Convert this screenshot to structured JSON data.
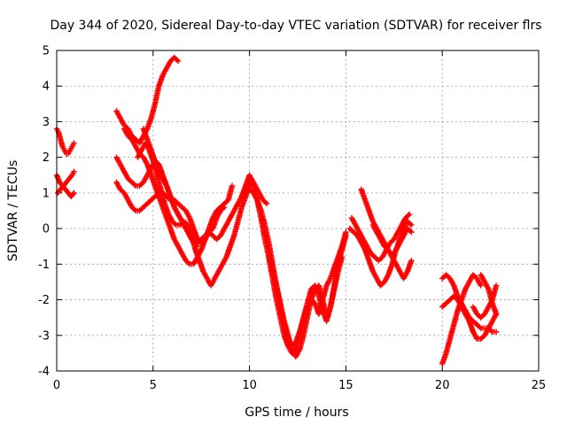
{
  "chart_data": {
    "type": "scatter",
    "title": "Day 344 of 2020, Sidereal Day-to-day VTEC variation (SDTVAR) for receiver flrs",
    "xlabel": "GPS time / hours",
    "ylabel": "SDTVAR / TECUs",
    "xlim": [
      0,
      25
    ],
    "ylim": [
      -4,
      5
    ],
    "xticks": [
      "0",
      "5",
      "10",
      "15",
      "20",
      "25"
    ],
    "yticks": [
      "-4",
      "-3",
      "-2",
      "-1",
      "0",
      "1",
      "2",
      "3",
      "4",
      "5"
    ],
    "grid": true,
    "marker": "+",
    "color": "#ff0000",
    "series": [
      {
        "x": [
          0.0,
          0.1,
          0.2,
          0.3,
          0.4,
          0.5,
          0.6,
          0.7,
          0.8,
          0.9
        ],
        "y": [
          2.8,
          2.7,
          2.5,
          2.3,
          2.2,
          2.1,
          2.1,
          2.2,
          2.3,
          2.4
        ]
      },
      {
        "x": [
          0.0,
          0.15,
          0.3,
          0.45,
          0.6,
          0.75,
          0.9
        ],
        "y": [
          1.5,
          1.3,
          1.2,
          1.1,
          1.0,
          0.9,
          1.0
        ]
      },
      {
        "x": [
          0.05,
          0.2,
          0.35,
          0.5,
          0.65,
          0.8,
          0.9
        ],
        "y": [
          1.0,
          1.1,
          1.2,
          1.3,
          1.4,
          1.5,
          1.6
        ]
      },
      {
        "x": [
          3.1,
          3.3,
          3.5,
          3.7,
          3.9,
          4.1,
          4.3,
          4.5,
          4.7,
          4.9,
          5.1,
          5.3,
          5.5,
          5.7,
          5.9,
          6.1,
          6.3
        ],
        "y": [
          3.3,
          3.1,
          2.9,
          2.8,
          2.6,
          2.5,
          2.4,
          2.6,
          2.8,
          3.1,
          3.5,
          4.0,
          4.3,
          4.5,
          4.7,
          4.8,
          4.7
        ]
      },
      {
        "x": [
          3.1,
          3.3,
          3.5,
          3.7,
          3.9,
          4.1,
          4.3,
          4.5,
          4.7,
          4.9,
          5.1,
          5.3,
          5.5,
          5.7,
          5.9,
          6.1,
          6.3,
          6.5,
          6.7,
          6.9,
          7.1,
          7.3,
          7.5,
          7.7,
          7.9,
          8.1,
          8.3,
          8.5,
          8.7
        ],
        "y": [
          1.3,
          1.1,
          1.0,
          0.8,
          0.6,
          0.5,
          0.5,
          0.6,
          0.7,
          0.8,
          0.9,
          1.0,
          1.0,
          0.9,
          0.8,
          0.8,
          0.7,
          0.6,
          0.5,
          0.3,
          0.0,
          -0.3,
          -0.4,
          -0.3,
          -0.1,
          0.0,
          0.3,
          0.5,
          0.6
        ]
      },
      {
        "x": [
          3.1,
          3.3,
          3.5,
          3.7,
          3.9,
          4.1,
          4.3,
          4.5,
          4.7,
          4.9,
          5.1,
          5.3,
          5.5,
          5.7,
          5.9,
          6.1,
          6.3,
          6.5,
          6.7,
          6.9,
          7.1,
          7.3
        ],
        "y": [
          2.0,
          1.8,
          1.6,
          1.4,
          1.3,
          1.2,
          1.2,
          1.3,
          1.5,
          1.7,
          1.9,
          1.8,
          1.5,
          1.2,
          0.9,
          0.6,
          0.4,
          0.2,
          0.0,
          -0.2,
          -0.4,
          -0.5
        ]
      },
      {
        "x": [
          3.5,
          3.7,
          3.9,
          4.1,
          4.3,
          4.5,
          4.7,
          4.9,
          5.1,
          5.3,
          5.5,
          5.7,
          5.9,
          6.1,
          6.3,
          6.5,
          6.7,
          6.9,
          7.1,
          7.3,
          7.5,
          7.7,
          7.9,
          8.1,
          8.3,
          8.5,
          8.7,
          8.9,
          9.1
        ],
        "y": [
          2.8,
          2.6,
          2.5,
          2.3,
          2.1,
          2.0,
          1.8,
          1.5,
          1.2,
          0.9,
          0.6,
          0.3,
          0.0,
          -0.3,
          -0.5,
          -0.7,
          -0.9,
          -1.0,
          -1.0,
          -0.8,
          -0.6,
          -0.3,
          0.0,
          0.3,
          0.5,
          0.6,
          0.7,
          0.8,
          1.2
        ]
      },
      {
        "x": [
          4.2,
          4.4,
          4.6,
          4.8,
          5.0,
          5.2,
          5.4,
          5.6,
          5.8,
          6.0,
          6.2,
          6.4,
          6.6,
          6.8,
          7.0,
          7.2,
          7.4,
          7.6,
          7.8,
          8.0,
          8.2,
          8.4,
          8.6,
          8.8,
          9.0,
          9.2,
          9.4,
          9.6,
          9.8,
          10.0
        ],
        "y": [
          2.0,
          2.2,
          2.4,
          2.2,
          1.9,
          1.5,
          1.1,
          0.7,
          0.4,
          0.2,
          0.1,
          0.1,
          0.2,
          0.1,
          -0.2,
          -0.6,
          -0.9,
          -1.2,
          -1.4,
          -1.6,
          -1.4,
          -1.2,
          -1.0,
          -0.8,
          -0.5,
          -0.2,
          0.2,
          0.6,
          0.9,
          1.2
        ]
      },
      {
        "x": [
          4.5,
          4.7,
          4.9,
          5.1,
          5.3,
          5.5,
          5.7,
          5.9,
          6.1,
          6.3,
          6.5,
          6.7,
          6.9,
          7.1,
          7.3,
          7.5,
          7.7,
          7.9,
          8.1,
          8.3,
          8.5,
          8.7,
          8.9,
          9.1,
          9.3,
          9.5,
          9.7,
          9.9,
          10.1,
          10.3,
          10.5,
          10.7,
          10.9
        ],
        "y": [
          2.8,
          2.5,
          2.2,
          1.9,
          1.6,
          1.4,
          1.2,
          0.9,
          0.6,
          0.4,
          0.2,
          0.0,
          -0.2,
          -0.4,
          -0.4,
          -0.3,
          -0.2,
          -0.1,
          -0.2,
          -0.3,
          -0.2,
          0.0,
          0.2,
          0.4,
          0.6,
          0.8,
          1.0,
          1.2,
          1.4,
          1.2,
          1.0,
          0.8,
          0.7
        ]
      },
      {
        "x": [
          9.6,
          9.8,
          10.0,
          10.2,
          10.4,
          10.6,
          10.8,
          11.0,
          11.2,
          11.4,
          11.6,
          11.8,
          12.0,
          12.2,
          12.4,
          12.6,
          12.8,
          13.0,
          13.2,
          13.4,
          13.6,
          13.8,
          14.0,
          14.2,
          14.4,
          14.6,
          14.8,
          15.0
        ],
        "y": [
          0.9,
          1.2,
          1.5,
          1.2,
          0.8,
          0.3,
          -0.3,
          -0.8,
          -1.4,
          -2.0,
          -2.5,
          -3.0,
          -3.3,
          -3.5,
          -3.4,
          -3.0,
          -2.6,
          -2.2,
          -2.0,
          -2.1,
          -2.4,
          -2.0,
          -1.6,
          -1.4,
          -1.1,
          -0.8,
          -0.5,
          -0.1
        ]
      },
      {
        "x": [
          10.0,
          10.2,
          10.4,
          10.6,
          10.8,
          11.0,
          11.2,
          11.4,
          11.6,
          11.8,
          12.0,
          12.2,
          12.4,
          12.6,
          12.8,
          13.0,
          13.2,
          13.4,
          13.6,
          13.8,
          14.0,
          14.2,
          14.4,
          14.6,
          14.8
        ],
        "y": [
          1.1,
          1.0,
          0.8,
          0.5,
          0.1,
          -0.4,
          -1.0,
          -1.6,
          -2.2,
          -2.7,
          -3.1,
          -3.3,
          -3.2,
          -2.9,
          -2.5,
          -2.1,
          -1.7,
          -1.6,
          -1.9,
          -2.3,
          -2.6,
          -2.2,
          -1.7,
          -1.2,
          -0.8
        ]
      },
      {
        "x": [
          11.0,
          11.2,
          11.4,
          11.6,
          11.8,
          12.0,
          12.2,
          12.4,
          12.6,
          12.8,
          13.0,
          13.2,
          13.4,
          13.6,
          13.8,
          14.0,
          14.2,
          14.4,
          14.6,
          14.8,
          15.0
        ],
        "y": [
          -0.8,
          -1.2,
          -1.6,
          -2.1,
          -2.6,
          -3.0,
          -3.4,
          -3.6,
          -3.4,
          -3.0,
          -2.5,
          -2.0,
          -1.7,
          -1.6,
          -2.0,
          -2.5,
          -2.2,
          -1.6,
          -1.0,
          -0.6,
          -0.2
        ]
      },
      {
        "x": [
          15.3,
          15.5,
          15.7,
          15.9,
          16.1,
          16.3,
          16.5,
          16.7,
          16.9,
          17.1,
          17.3,
          17.5,
          17.7,
          17.9,
          18.1,
          18.3
        ],
        "y": [
          0.3,
          0.1,
          -0.1,
          -0.3,
          -0.5,
          -0.7,
          -0.8,
          -0.9,
          -0.8,
          -0.6,
          -0.4,
          -0.3,
          -0.1,
          0.1,
          0.3,
          0.4
        ]
      },
      {
        "x": [
          15.2,
          15.4,
          15.6,
          15.8,
          16.0,
          16.2,
          16.4,
          16.6,
          16.8,
          17.0,
          17.2,
          17.4,
          17.6,
          17.8,
          18.0,
          18.2,
          18.4
        ],
        "y": [
          0.0,
          -0.1,
          -0.2,
          -0.4,
          -0.6,
          -0.9,
          -1.2,
          -1.4,
          -1.6,
          -1.5,
          -1.3,
          -1.0,
          -0.6,
          -0.3,
          0.0,
          0.2,
          0.1
        ]
      },
      {
        "x": [
          15.8,
          16.0,
          16.2,
          16.4,
          16.6,
          16.8,
          17.0,
          17.2,
          17.4,
          17.6,
          17.8,
          18.0,
          18.2,
          18.4
        ],
        "y": [
          1.1,
          0.8,
          0.5,
          0.2,
          0.0,
          -0.2,
          -0.4,
          -0.6,
          -0.8,
          -1.0,
          -1.2,
          -1.4,
          -1.2,
          -0.9
        ]
      },
      {
        "x": [
          16.4,
          16.6,
          16.8,
          17.0,
          17.2,
          17.4,
          17.6,
          17.8,
          18.0,
          18.2,
          18.4
        ],
        "y": [
          0.1,
          -0.1,
          -0.3,
          -0.5,
          -0.6,
          -0.8,
          -0.6,
          -0.4,
          -0.2,
          0.0,
          -0.1
        ]
      },
      {
        "x": [
          20.0,
          20.2,
          20.4,
          20.6,
          20.8,
          21.0,
          21.2,
          21.4,
          21.6,
          21.8,
          22.0
        ],
        "y": [
          -3.8,
          -3.5,
          -3.1,
          -2.7,
          -2.3,
          -2.0,
          -1.7,
          -1.5,
          -1.3,
          -1.4,
          -1.6
        ]
      },
      {
        "x": [
          20.0,
          20.2,
          20.4,
          20.6,
          20.8,
          21.0,
          21.2,
          21.4,
          21.6,
          21.8,
          22.0,
          22.2,
          22.4,
          22.6,
          22.8
        ],
        "y": [
          -1.4,
          -1.3,
          -1.4,
          -1.6,
          -1.9,
          -2.1,
          -2.3,
          -2.5,
          -2.6,
          -2.7,
          -2.8,
          -2.8,
          -2.8,
          -2.9,
          -2.9
        ]
      },
      {
        "x": [
          20.0,
          20.2,
          20.4,
          20.6,
          20.8,
          21.0,
          21.2,
          21.4,
          21.6,
          21.8,
          22.0,
          22.2,
          22.4,
          22.6,
          22.8
        ],
        "y": [
          -2.2,
          -2.1,
          -2.0,
          -1.9,
          -2.0,
          -2.2,
          -2.4,
          -2.6,
          -2.9,
          -3.1,
          -3.1,
          -3.0,
          -2.8,
          -2.6,
          -2.4
        ]
      },
      {
        "x": [
          21.6,
          21.8,
          22.0,
          22.2,
          22.4,
          22.6,
          22.8
        ],
        "y": [
          -2.2,
          -2.4,
          -2.5,
          -2.4,
          -2.2,
          -2.0,
          -1.6
        ]
      },
      {
        "x": [
          22.0,
          22.2,
          22.4,
          22.6,
          22.8
        ],
        "y": [
          -1.3,
          -1.5,
          -1.7,
          -2.1,
          -2.4
        ]
      }
    ]
  }
}
